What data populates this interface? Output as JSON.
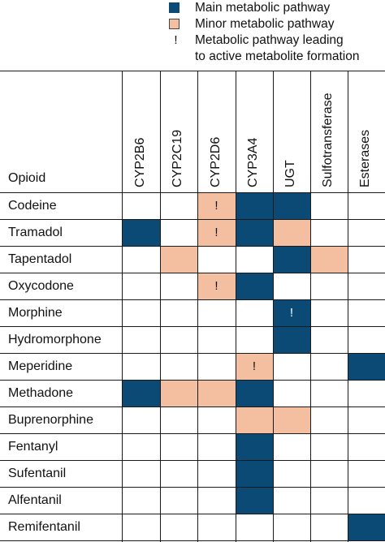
{
  "legend": {
    "main_label": "Main metabolic pathway",
    "minor_label": "Minor metabolic pathway",
    "active_symbol": "!",
    "active_label_line1": "Metabolic pathway leading",
    "active_label_line2": "to active metabolite formation"
  },
  "colors": {
    "main": "#0b4a74",
    "minor": "#f4bea0"
  },
  "table": {
    "row_header": "Opioid",
    "columns": [
      "CYP2B6",
      "CYP2C19",
      "CYP2D6",
      "CYP3A4",
      "UGT",
      "Sulfotransferase",
      "Esterases"
    ],
    "rows": [
      {
        "name": "Codeine",
        "cells": [
          "",
          "",
          "minor!",
          "main",
          "main",
          "",
          ""
        ]
      },
      {
        "name": "Tramadol",
        "cells": [
          "main",
          "",
          "minor!",
          "main",
          "minor",
          "",
          ""
        ]
      },
      {
        "name": "Tapentadol",
        "cells": [
          "",
          "minor",
          "",
          "",
          "main",
          "minor",
          ""
        ]
      },
      {
        "name": "Oxycodone",
        "cells": [
          "",
          "",
          "minor!",
          "main",
          "",
          "",
          ""
        ]
      },
      {
        "name": "Morphine",
        "cells": [
          "",
          "",
          "",
          "",
          "main!",
          "",
          ""
        ]
      },
      {
        "name": "Hydromorphone",
        "cells": [
          "",
          "",
          "",
          "",
          "main",
          "",
          ""
        ]
      },
      {
        "name": "Meperidine",
        "cells": [
          "",
          "",
          "",
          "minor!",
          "",
          "",
          "main"
        ]
      },
      {
        "name": "Methadone",
        "cells": [
          "main",
          "minor",
          "minor",
          "main",
          "",
          "",
          ""
        ]
      },
      {
        "name": "Buprenorphine",
        "cells": [
          "",
          "",
          "",
          "minor",
          "minor",
          "",
          ""
        ]
      },
      {
        "name": "Fentanyl",
        "cells": [
          "",
          "",
          "",
          "main",
          "",
          "",
          ""
        ]
      },
      {
        "name": "Sufentanil",
        "cells": [
          "",
          "",
          "",
          "main",
          "",
          "",
          ""
        ]
      },
      {
        "name": "Alfentanil",
        "cells": [
          "",
          "",
          "",
          "main",
          "",
          "",
          ""
        ]
      },
      {
        "name": "Remifentanil",
        "cells": [
          "",
          "",
          "",
          "",
          "",
          "",
          "main"
        ]
      }
    ]
  }
}
